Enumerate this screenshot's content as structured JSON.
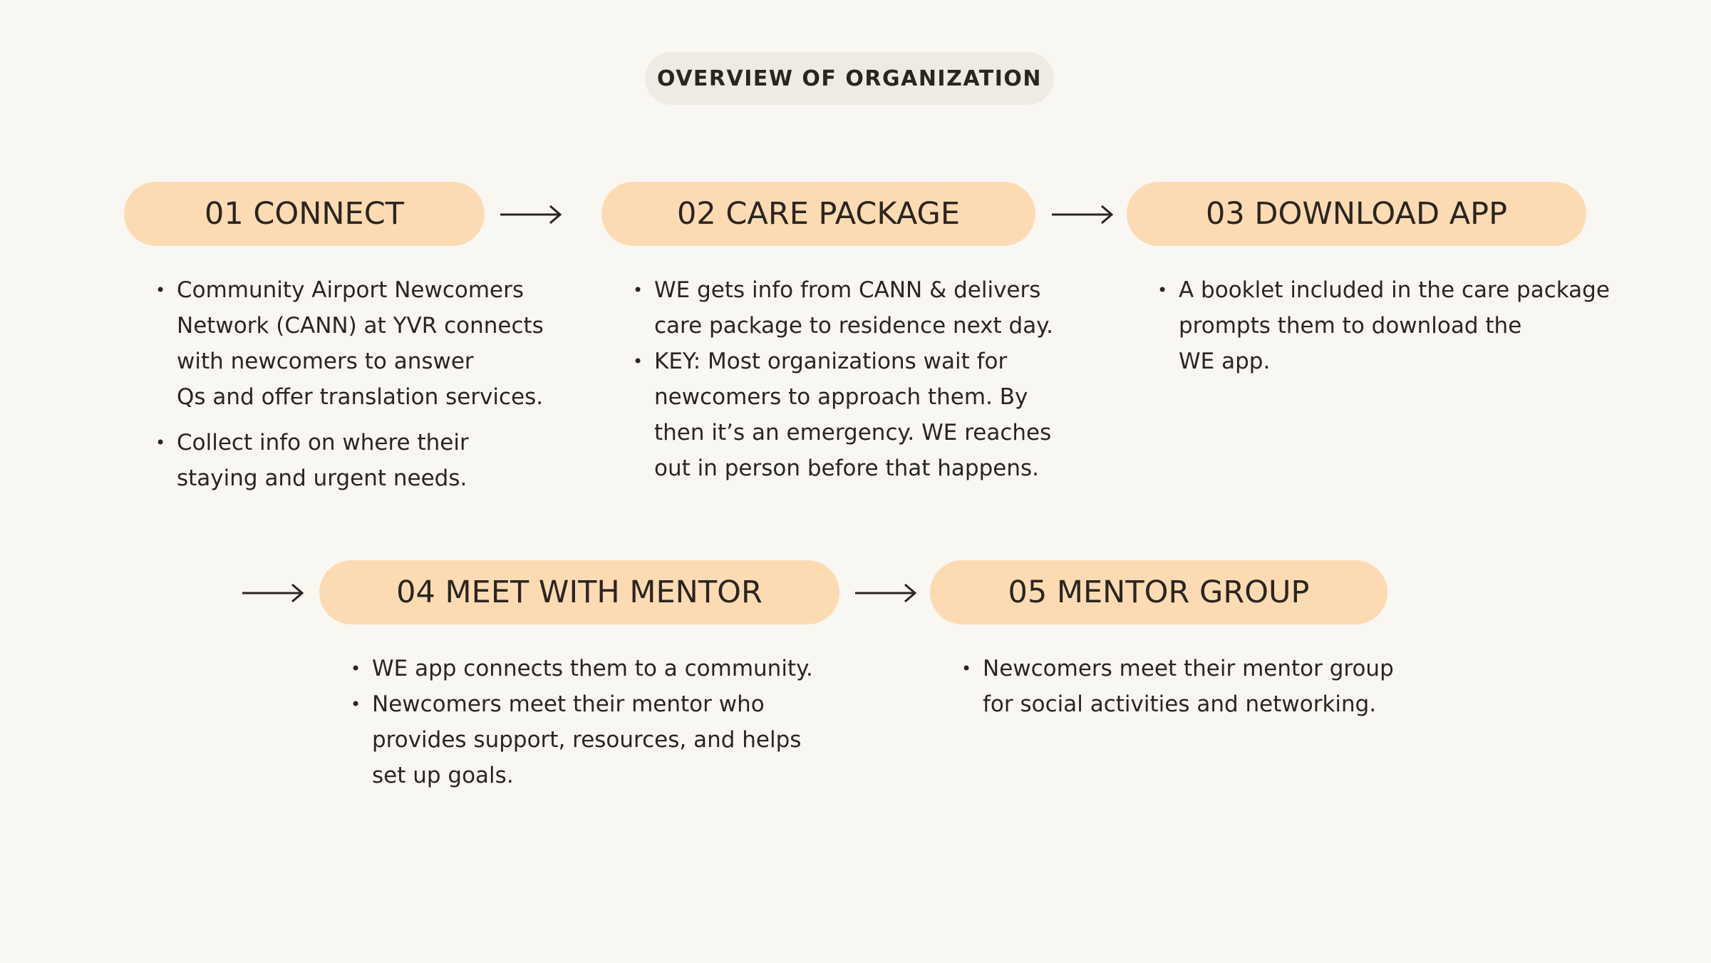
{
  "header": {
    "title": "OVERVIEW OF ORGANIZATION"
  },
  "steps": [
    {
      "label": "01 CONNECT",
      "bullets": [
        "Community Airport Newcomers\nNetwork (CANN) at YVR connects\nwith newcomers to answer\nQs and offer translation services.",
        "Collect info on where their\nstaying and urgent needs."
      ]
    },
    {
      "label": "02 CARE PACKAGE",
      "bullets": [
        "WE gets info from CANN & delivers\ncare package to residence next day.",
        "KEY: Most organizations wait for\nnewcomers to approach them. By\nthen it’s an emergency. WE reaches\nout in person before that happens."
      ]
    },
    {
      "label": "03 DOWNLOAD APP",
      "bullets": [
        "A booklet included in the care package\nprompts them to download the\nWE app."
      ]
    },
    {
      "label": "04 MEET WITH MENTOR",
      "bullets": [
        "WE app connects them to a community.",
        "Newcomers meet their mentor who\nprovides support, resources, and helps\nset up goals."
      ]
    },
    {
      "label": "05 MENTOR GROUP",
      "bullets": [
        "Newcomers meet their mentor group\nfor social activities and networking."
      ]
    }
  ],
  "colors": {
    "background": "#f9f7f2",
    "step_pill": "#fddbb2",
    "header_pill": "#efebe4",
    "text": "#2a2520"
  },
  "icons": {
    "arrow": "arrow-right-icon"
  }
}
